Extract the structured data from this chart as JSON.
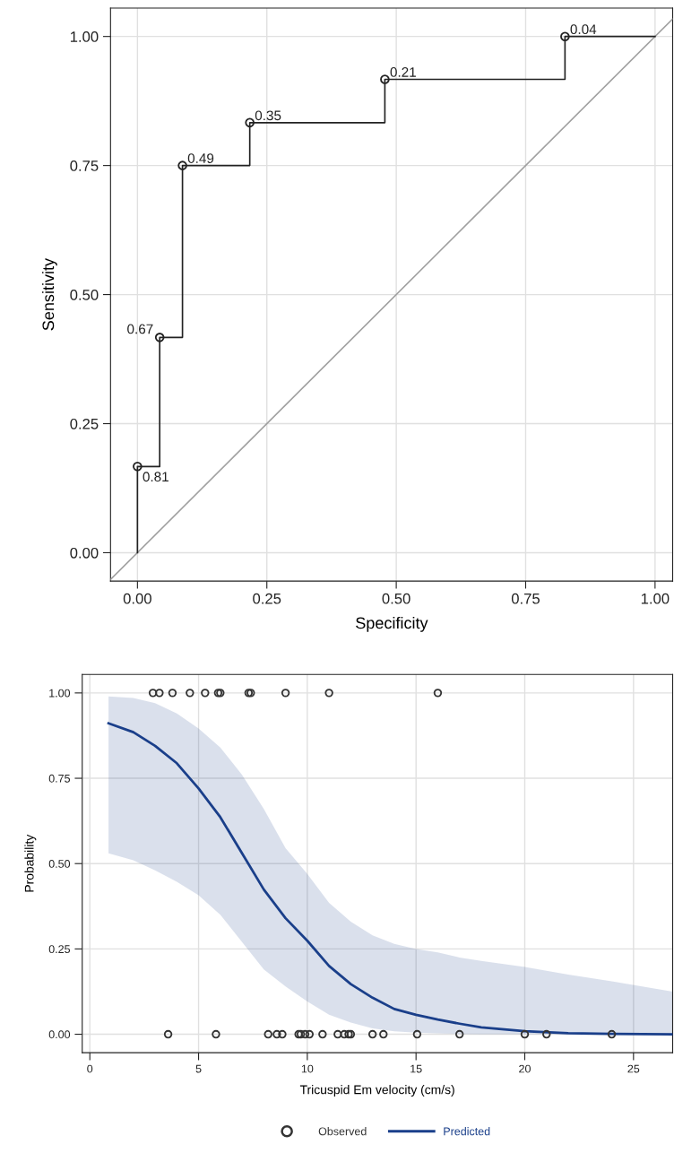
{
  "chart_data": [
    {
      "type": "step",
      "xlabel": "Specificity",
      "ylabel": "Sensitivity",
      "grid": true,
      "legend": false,
      "xlim": [
        -0.052,
        1.034
      ],
      "ylim": [
        -0.055,
        1.055
      ],
      "xticks": [
        {
          "value": 0,
          "label": "0.00"
        },
        {
          "value": 0.25,
          "label": "0.25"
        },
        {
          "value": 0.5,
          "label": "0.50"
        },
        {
          "value": 0.75,
          "label": "0.75"
        },
        {
          "value": 1,
          "label": "1.00"
        }
      ],
      "yticks": [
        {
          "value": 0,
          "label": "0.00"
        },
        {
          "value": 0.25,
          "label": "0.25"
        },
        {
          "value": 0.5,
          "label": "0.50"
        },
        {
          "value": 0.75,
          "label": "0.75"
        },
        {
          "value": 1,
          "label": "1.00"
        }
      ],
      "series": [
        {
          "type": "line",
          "color": "#a0a0a0",
          "marker": "none",
          "x": [
            -0.052,
            1.034
          ],
          "values": [
            -0.052,
            1.034
          ]
        },
        {
          "color": "#222222",
          "marker": "none",
          "x": [
            0,
            0,
            0.043,
            0.087,
            0.217,
            0.478,
            0.826,
            1.0
          ],
          "values": [
            0,
            0.167,
            0.417,
            0.75,
            0.833,
            0.917,
            1.0,
            1.0
          ]
        },
        {
          "type": "scatter",
          "color": "#222222",
          "marker": "circle",
          "x": [
            0,
            0.043,
            0.087,
            0.217,
            0.478,
            0.826
          ],
          "values": [
            0.167,
            0.417,
            0.75,
            0.833,
            0.917,
            1.0
          ]
        }
      ],
      "annotations": [
        {
          "text": "0.81",
          "x": 0,
          "y": 0.167
        },
        {
          "text": "0.67",
          "x": 0.043,
          "y": 0.417
        },
        {
          "text": "0.49",
          "x": 0.087,
          "y": 0.75
        },
        {
          "text": "0.35",
          "x": 0.217,
          "y": 0.833
        },
        {
          "text": "0.21",
          "x": 0.478,
          "y": 0.917
        },
        {
          "text": "0.04",
          "x": 0.826,
          "y": 1.0
        }
      ]
    },
    {
      "type": "line",
      "xlabel": "Tricuspid Em velocity (cm/s)",
      "ylabel": "Probability",
      "grid": true,
      "legend": "bottom",
      "xlim": [
        -0.35,
        26.8
      ],
      "ylim": [
        -0.054,
        1.054
      ],
      "xticks": [
        0,
        5,
        10,
        15,
        20,
        25
      ],
      "yticks": [
        {
          "value": 0,
          "label": "0.00"
        },
        {
          "value": 0.25,
          "label": "0.25"
        },
        {
          "value": 0.5,
          "label": "0.50"
        },
        {
          "value": 0.75,
          "label": "0.75"
        },
        {
          "value": 1,
          "label": "1.00"
        }
      ],
      "series": [
        {
          "type": "scatter",
          "name": "Observed",
          "color": "#333333",
          "marker": "circle",
          "x": [
            2.9,
            3.2,
            3.8,
            4.6,
            5.3,
            5.9,
            6.0,
            7.3,
            7.4,
            9.0,
            11.0,
            16.0,
            3.6,
            5.8,
            8.2,
            8.6,
            8.85,
            9.6,
            9.7,
            9.9,
            10.1,
            10.7,
            11.4,
            11.7,
            11.9,
            12.0,
            13.0,
            13.5,
            15.05,
            17.0,
            20.0,
            21.0,
            24.0
          ],
          "values": [
            1,
            1,
            1,
            1,
            1,
            1,
            1,
            1,
            1,
            1,
            1,
            1,
            0,
            0,
            0,
            0,
            0,
            0,
            0,
            0,
            0,
            0,
            0,
            0,
            0,
            0,
            0,
            0,
            0,
            0,
            0,
            0,
            0
          ]
        },
        {
          "name": "Predicted",
          "color": "#1a3f8a",
          "marker": "none",
          "x": [
            0.86,
            2,
            3,
            4,
            5,
            6,
            7,
            8,
            9,
            10,
            11,
            12,
            13,
            14,
            15,
            16,
            17,
            18,
            20,
            22,
            24,
            26.8
          ],
          "values": [
            0.911,
            0.885,
            0.845,
            0.794,
            0.72,
            0.636,
            0.53,
            0.424,
            0.34,
            0.274,
            0.2,
            0.147,
            0.107,
            0.074,
            0.057,
            0.043,
            0.031,
            0.02,
            0.009,
            0.003,
            0.001,
            0.0
          ],
          "lower": [
            0.53,
            0.51,
            0.48,
            0.447,
            0.407,
            0.35,
            0.27,
            0.19,
            0.14,
            0.096,
            0.057,
            0.034,
            0.017,
            0.009,
            0.005,
            0.003,
            0.001,
            0,
            0,
            0,
            0,
            0
          ],
          "upper": [
            0.99,
            0.985,
            0.97,
            0.94,
            0.896,
            0.84,
            0.76,
            0.66,
            0.545,
            0.47,
            0.385,
            0.33,
            0.29,
            0.265,
            0.25,
            0.24,
            0.225,
            0.215,
            0.197,
            0.175,
            0.155,
            0.125
          ]
        }
      ]
    }
  ]
}
